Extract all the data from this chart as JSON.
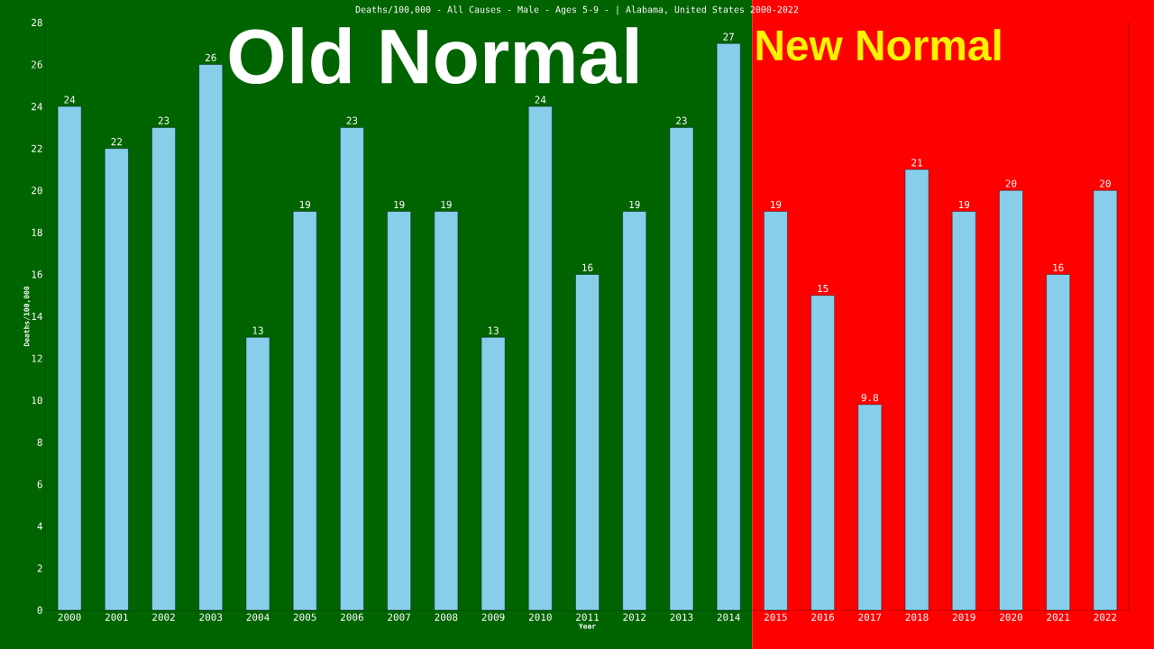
{
  "chart_data": {
    "type": "bar",
    "title": "Deaths/100,000 - All Causes - Male - Ages 5-9 -  | Alabama, United States 2000-2022",
    "xlabel": "Year",
    "ylabel": "Deaths/100,000",
    "categories": [
      "2000",
      "2001",
      "2002",
      "2003",
      "2004",
      "2005",
      "2006",
      "2007",
      "2008",
      "2009",
      "2010",
      "2011",
      "2012",
      "2013",
      "2014",
      "2015",
      "2016",
      "2017",
      "2018",
      "2019",
      "2020",
      "2021",
      "2022"
    ],
    "values": [
      24,
      22,
      23,
      26,
      13,
      19,
      23,
      19,
      19,
      13,
      24,
      16,
      19,
      23,
      27,
      19,
      15,
      9.8,
      21,
      19,
      20,
      16,
      20
    ],
    "color": "#87ceeb",
    "ylim": [
      0,
      28
    ],
    "yticks": [
      0,
      2,
      4,
      6,
      8,
      10,
      12,
      14,
      16,
      18,
      20,
      22,
      24,
      26,
      28
    ],
    "grid": false,
    "data_labels": true,
    "bands": [
      {
        "axis": "x",
        "from": "2000",
        "to": "2014",
        "label": "Old Normal",
        "color": "#006400"
      },
      {
        "axis": "x",
        "from": "2015",
        "to": "2022",
        "label": "New Normal",
        "color": "#ff0000"
      }
    ]
  }
}
